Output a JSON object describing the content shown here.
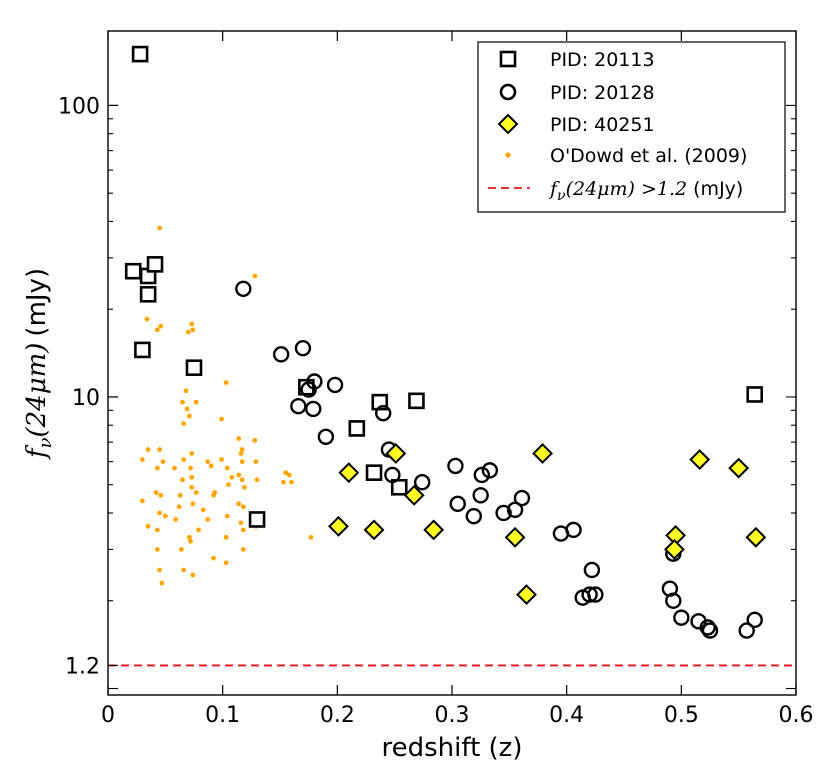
{
  "chart_data": {
    "type": "scatter",
    "xlabel": "redshift (z)",
    "ylabel": "f_ν(24μm) (mJy)",
    "ylabel_parts": {
      "math": "f",
      "sub": "ν",
      "paren": "(24μm)",
      "unit": "(mJy)"
    },
    "xlim": [
      0,
      0.6
    ],
    "ylim_log": [
      0.95,
      180
    ],
    "y_scale": "log",
    "x_ticks": [
      0,
      0.1,
      0.2,
      0.3,
      0.4,
      0.5,
      0.6
    ],
    "x_tick_labels": [
      "0",
      "0.1",
      "0.2",
      "0.3",
      "0.4",
      "0.5",
      "0.6"
    ],
    "y_ticks": [
      1.2,
      10,
      100
    ],
    "y_tick_labels": [
      "1.2",
      "10",
      "100"
    ],
    "threshold": {
      "value": 1.2,
      "color": "#e8141d",
      "label_math": "f",
      "label_sub": "ν",
      "label_expr": "(24μm) >1.2",
      "label_unit": " (mJy)"
    },
    "legend_position": "top-right",
    "series": [
      {
        "name": "PID: 20113",
        "marker": "square",
        "color": "#000000",
        "fill": "#ffffff",
        "points": [
          [
            0.028,
            150
          ],
          [
            0.022,
            27
          ],
          [
            0.035,
            26
          ],
          [
            0.041,
            28.5
          ],
          [
            0.035,
            22.5
          ],
          [
            0.03,
            14.5
          ],
          [
            0.075,
            12.6
          ],
          [
            0.173,
            10.8
          ],
          [
            0.237,
            9.6
          ],
          [
            0.269,
            9.7
          ],
          [
            0.217,
            7.8
          ],
          [
            0.232,
            5.5
          ],
          [
            0.254,
            4.9
          ],
          [
            0.13,
            3.8
          ],
          [
            0.564,
            10.2
          ]
        ]
      },
      {
        "name": "PID: 20128",
        "marker": "circle",
        "color": "#000000",
        "fill": "#ffffff",
        "points": [
          [
            0.118,
            23.5
          ],
          [
            0.151,
            14.0
          ],
          [
            0.17,
            14.7
          ],
          [
            0.18,
            11.3
          ],
          [
            0.175,
            10.6
          ],
          [
            0.198,
            11.0
          ],
          [
            0.166,
            9.3
          ],
          [
            0.179,
            9.1
          ],
          [
            0.24,
            8.8
          ],
          [
            0.19,
            7.3
          ],
          [
            0.245,
            6.6
          ],
          [
            0.303,
            5.8
          ],
          [
            0.333,
            5.6
          ],
          [
            0.326,
            5.4
          ],
          [
            0.248,
            5.4
          ],
          [
            0.274,
            5.1
          ],
          [
            0.325,
            4.6
          ],
          [
            0.305,
            4.3
          ],
          [
            0.361,
            4.5
          ],
          [
            0.355,
            4.1
          ],
          [
            0.345,
            4.0
          ],
          [
            0.319,
            3.9
          ],
          [
            0.395,
            3.4
          ],
          [
            0.406,
            3.5
          ],
          [
            0.422,
            2.55
          ],
          [
            0.42,
            2.1
          ],
          [
            0.414,
            2.05
          ],
          [
            0.425,
            2.1
          ],
          [
            0.493,
            2.9
          ],
          [
            0.49,
            2.2
          ],
          [
            0.493,
            2.0
          ],
          [
            0.5,
            1.75
          ],
          [
            0.515,
            1.7
          ],
          [
            0.523,
            1.62
          ],
          [
            0.525,
            1.58
          ],
          [
            0.557,
            1.58
          ],
          [
            0.564,
            1.72
          ]
        ]
      },
      {
        "name": "PID: 40251",
        "marker": "diamond",
        "color": "#000000",
        "fill": "#ffff22",
        "points": [
          [
            0.251,
            6.4
          ],
          [
            0.379,
            6.4
          ],
          [
            0.516,
            6.1
          ],
          [
            0.21,
            5.5
          ],
          [
            0.55,
            5.7
          ],
          [
            0.267,
            4.6
          ],
          [
            0.201,
            3.6
          ],
          [
            0.232,
            3.5
          ],
          [
            0.284,
            3.5
          ],
          [
            0.355,
            3.3
          ],
          [
            0.495,
            3.35
          ],
          [
            0.494,
            3.0
          ],
          [
            0.565,
            3.3
          ],
          [
            0.365,
            2.1
          ]
        ]
      },
      {
        "name": "O'Dowd et al. (2009)",
        "marker": "dot",
        "color": "#ffa500",
        "points": [
          [
            0.045,
            38
          ],
          [
            0.128,
            26
          ],
          [
            0.034,
            18.5
          ],
          [
            0.046,
            17.5
          ],
          [
            0.043,
            17
          ],
          [
            0.073,
            17.8
          ],
          [
            0.074,
            17
          ],
          [
            0.07,
            16.7
          ],
          [
            0.031,
            14
          ],
          [
            0.073,
            12.1
          ],
          [
            0.103,
            11.2
          ],
          [
            0.077,
            9.6
          ],
          [
            0.068,
            10.5
          ],
          [
            0.065,
            9.6
          ],
          [
            0.069,
            9.1
          ],
          [
            0.071,
            8.6
          ],
          [
            0.099,
            8.4
          ],
          [
            0.066,
            8.1
          ],
          [
            0.114,
            7.2
          ],
          [
            0.128,
            7.1
          ],
          [
            0.117,
            6.6
          ],
          [
            0.035,
            6.6
          ],
          [
            0.045,
            6.6
          ],
          [
            0.073,
            6.4
          ],
          [
            0.116,
            6.4
          ],
          [
            0.03,
            6.1
          ],
          [
            0.066,
            6.1
          ],
          [
            0.099,
            6.1
          ],
          [
            0.048,
            6.0
          ],
          [
            0.087,
            6.0
          ],
          [
            0.117,
            6.0
          ],
          [
            0.129,
            6.0
          ],
          [
            0.043,
            5.7
          ],
          [
            0.072,
            5.7
          ],
          [
            0.058,
            5.7
          ],
          [
            0.09,
            5.8
          ],
          [
            0.104,
            5.7
          ],
          [
            0.114,
            5.4
          ],
          [
            0.155,
            5.5
          ],
          [
            0.158,
            5.4
          ],
          [
            0.073,
            5.3
          ],
          [
            0.065,
            5.2
          ],
          [
            0.108,
            5.3
          ],
          [
            0.117,
            5.2
          ],
          [
            0.13,
            5.2
          ],
          [
            0.153,
            5.1
          ],
          [
            0.16,
            5.1
          ],
          [
            0.073,
            4.9
          ],
          [
            0.105,
            5.0
          ],
          [
            0.119,
            4.9
          ],
          [
            0.042,
            4.7
          ],
          [
            0.046,
            4.6
          ],
          [
            0.063,
            4.6
          ],
          [
            0.077,
            4.7
          ],
          [
            0.092,
            4.6
          ],
          [
            0.093,
            4.7
          ],
          [
            0.03,
            4.4
          ],
          [
            0.062,
            4.2
          ],
          [
            0.074,
            4.3
          ],
          [
            0.114,
            4.3
          ],
          [
            0.118,
            4.2
          ],
          [
            0.083,
            4.1
          ],
          [
            0.104,
            3.9
          ],
          [
            0.045,
            4.0
          ],
          [
            0.05,
            3.9
          ],
          [
            0.059,
            3.8
          ],
          [
            0.087,
            3.8
          ],
          [
            0.116,
            3.7
          ],
          [
            0.129,
            3.6
          ],
          [
            0.035,
            3.6
          ],
          [
            0.043,
            3.5
          ],
          [
            0.079,
            3.5
          ],
          [
            0.118,
            3.5
          ],
          [
            0.071,
            3.3
          ],
          [
            0.103,
            3.3
          ],
          [
            0.177,
            3.3
          ],
          [
            0.072,
            3.2
          ],
          [
            0.043,
            3.0
          ],
          [
            0.064,
            3.0
          ],
          [
            0.118,
            3.0
          ],
          [
            0.092,
            2.8
          ],
          [
            0.103,
            2.7
          ],
          [
            0.045,
            2.55
          ],
          [
            0.066,
            2.55
          ],
          [
            0.074,
            2.45
          ],
          [
            0.047,
            2.3
          ]
        ]
      }
    ]
  }
}
